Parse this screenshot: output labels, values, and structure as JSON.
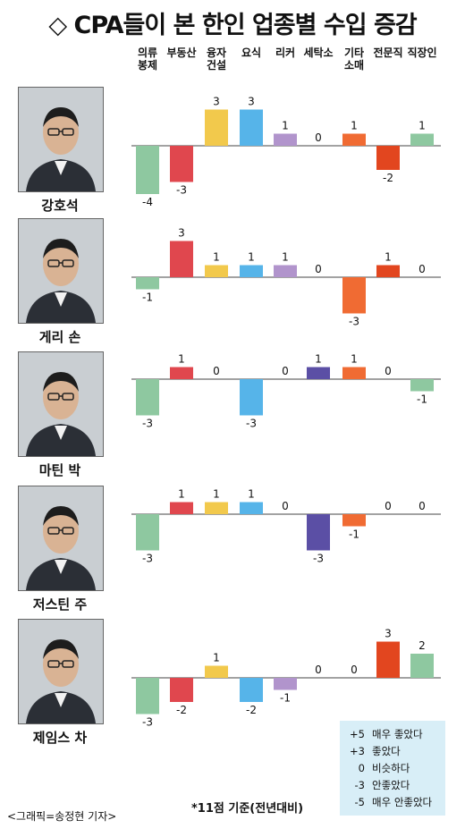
{
  "title": "◇ CPA들이 본 한인 업종별 수입 증감",
  "categories": [
    [
      "의류",
      "봉제"
    ],
    [
      "부동산"
    ],
    [
      "융자",
      "건설"
    ],
    [
      "요식"
    ],
    [
      "리커"
    ],
    [
      "세탁소"
    ],
    [
      "기타",
      "소매"
    ],
    [
      "전문직"
    ],
    [
      "직장인"
    ]
  ],
  "colors": [
    "#8ec8a0",
    "#e0474e",
    "#f2c94c",
    "#56b4e9",
    "#b194cc",
    "#5b4fa5",
    "#f06b33",
    "#e2461f",
    "#8ec8a0"
  ],
  "chart_data": {
    "type": "bar",
    "categories": [
      "의류봉제",
      "부동산",
      "융자건설",
      "요식",
      "리커",
      "세탁소",
      "기타소매",
      "전문직",
      "직장인"
    ],
    "series": [
      {
        "name": "강호석",
        "values": [
          -4,
          -3,
          3,
          3,
          1,
          0,
          1,
          -2,
          1
        ]
      },
      {
        "name": "게리 손",
        "values": [
          -1,
          3,
          1,
          1,
          1,
          0,
          -3,
          1,
          0
        ]
      },
      {
        "name": "마틴 박",
        "values": [
          -3,
          1,
          0,
          -3,
          0,
          1,
          1,
          0,
          -1
        ]
      },
      {
        "name": "저스틴 주",
        "values": [
          -3,
          1,
          1,
          1,
          0,
          -3,
          -1,
          0,
          0
        ]
      },
      {
        "name": "제임스 차",
        "values": [
          -3,
          -2,
          1,
          -2,
          -1,
          0,
          0,
          3,
          2
        ]
      }
    ],
    "ylim": [
      -5,
      5
    ],
    "xlabel": "",
    "ylabel": ""
  },
  "legend": [
    {
      "key": "+5",
      "text": "매우 좋았다"
    },
    {
      "key": "+3",
      "text": "좋았다"
    },
    {
      "key": "0",
      "text": "비슷하다"
    },
    {
      "key": "-3",
      "text": "안좋았다"
    },
    {
      "key": "-5",
      "text": "매우 안좋았다"
    }
  ],
  "footer_credit": "<그래픽=송정현 기자>",
  "footnote": "*11점 기준(전년대비)"
}
